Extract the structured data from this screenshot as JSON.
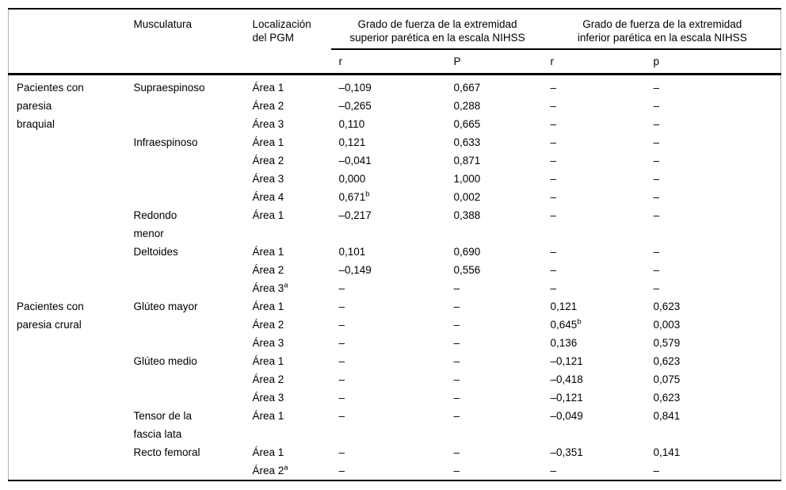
{
  "table": {
    "headers": {
      "musculatura": "Musculatura",
      "localizacion": "Localización\ndel PGM",
      "group_superior": "Grado de fuerza de la extremidad\nsuperior parética en la escala NIHSS",
      "group_inferior": "Grado de fuerza de la extremidad\ninferior parética en la escala NIHSS",
      "sub": [
        "r",
        "P",
        "r",
        "p"
      ]
    },
    "rows": [
      {
        "group": "Pacientes con\nparesia\nbraquial",
        "group_span": 11,
        "muscle": "Supraespinoso",
        "muscle_span": 3,
        "area": "Área 1",
        "r1": "–0,109",
        "p1": "0,667",
        "r2": "–",
        "p2": "–"
      },
      {
        "area": "Área 2",
        "r1": "–0,265",
        "p1": "0,288",
        "r2": "–",
        "p2": "–"
      },
      {
        "area": "Área 3",
        "r1": "0,110",
        "p1": "0,665",
        "r2": "–",
        "p2": "–"
      },
      {
        "muscle": "Infraespinoso",
        "muscle_span": 4,
        "area": "Área 1",
        "r1": "0,121",
        "p1": "0,633",
        "r2": "–",
        "p2": "–"
      },
      {
        "area": "Área 2",
        "r1": "–0,041",
        "p1": "0,871",
        "r2": "–",
        "p2": "–"
      },
      {
        "area": "Área 3",
        "r1": "0,000",
        "p1": "1,000",
        "r2": "–",
        "p2": "–"
      },
      {
        "area": "Área 4",
        "r1": "0,671",
        "r1_note": "b",
        "p1": "0,002",
        "r2": "–",
        "p2": "–"
      },
      {
        "muscle": "Redondo\nmenor",
        "muscle_span": 1,
        "area": "Área 1",
        "r1": "–0,217",
        "p1": "0,388",
        "r2": "–",
        "p2": "–"
      },
      {
        "muscle": "Deltoides",
        "muscle_span": 3,
        "area": "Área 1",
        "r1": "0,101",
        "p1": "0,690",
        "r2": "–",
        "p2": "–"
      },
      {
        "area": "Área 2",
        "r1": "–0,149",
        "p1": "0,556",
        "r2": "–",
        "p2": "–"
      },
      {
        "area": "Área 3",
        "area_note": "a",
        "r1": "–",
        "p1": "–",
        "r2": "–",
        "p2": "–"
      },
      {
        "group": "Pacientes con\nparesia crural",
        "group_span": 9,
        "muscle": "Glúteo mayor",
        "muscle_span": 3,
        "area": "Área 1",
        "r1": "–",
        "p1": "–",
        "r2": "0,121",
        "p2": "0,623"
      },
      {
        "area": "Área 2",
        "r1": "–",
        "p1": "–",
        "r2": "0,645",
        "r2_note": "b",
        "p2": "0,003"
      },
      {
        "area": "Área 3",
        "r1": "–",
        "p1": "–",
        "r2": "0,136",
        "p2": "0,579"
      },
      {
        "muscle": "Glúteo medio",
        "muscle_span": 3,
        "area": "Área 1",
        "r1": "–",
        "p1": "–",
        "r2": "–0,121",
        "p2": "0,623"
      },
      {
        "area": "Área 2",
        "r1": "–",
        "p1": "–",
        "r2": "–0,418",
        "p2": "0,075"
      },
      {
        "area": "Área 3",
        "r1": "–",
        "p1": "–",
        "r2": "–0,121",
        "p2": "0,623"
      },
      {
        "muscle": "Tensor de la\nfascia lata",
        "muscle_span": 1,
        "area": "Área 1",
        "r1": "–",
        "p1": "–",
        "r2": "–0,049",
        "p2": "0,841"
      },
      {
        "muscle": "Recto femoral",
        "muscle_span": 2,
        "area": "Área 1",
        "r1": "–",
        "p1": "–",
        "r2": "–0,351",
        "p2": "0,141"
      },
      {
        "area": "Área 2",
        "area_note": "a",
        "r1": "–",
        "p1": "–",
        "r2": "–",
        "p2": "–"
      }
    ]
  }
}
